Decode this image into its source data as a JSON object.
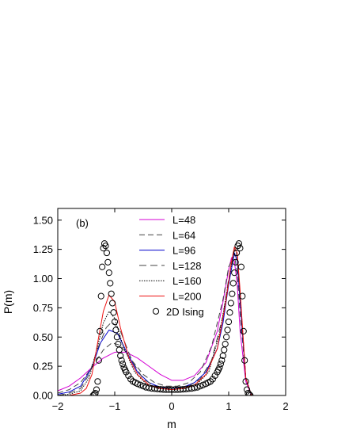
{
  "chart_data": {
    "type": "line",
    "panel_label": "(b)",
    "xlabel": "m",
    "ylabel": "P(m)",
    "xlim": [
      -2,
      2
    ],
    "ylim": [
      0,
      1.6
    ],
    "xticks": [
      {
        "value": -2,
        "label": "−2"
      },
      {
        "value": -1,
        "label": "−1"
      },
      {
        "value": 0,
        "label": "0"
      },
      {
        "value": 1,
        "label": "1"
      },
      {
        "value": 2,
        "label": "2"
      }
    ],
    "yticks": [
      {
        "value": 0,
        "label": "0.00"
      },
      {
        "value": 0.25,
        "label": "0.25"
      },
      {
        "value": 0.5,
        "label": "0.50"
      },
      {
        "value": 0.75,
        "label": "0.75"
      },
      {
        "value": 1.0,
        "label": "1.00"
      },
      {
        "value": 1.25,
        "label": "1.25"
      },
      {
        "value": 1.5,
        "label": "1.50"
      }
    ],
    "grid": false,
    "legend_position": "top-center",
    "series": [
      {
        "name": "L=48",
        "color": "#d400d4",
        "dash": "solid",
        "x": [
          -2.0,
          -1.8,
          -1.6,
          -1.4,
          -1.2,
          -1.0,
          -0.8,
          -0.6,
          -0.4,
          -0.2,
          0.0,
          0.2,
          0.4,
          0.6,
          0.8,
          0.9,
          1.0,
          1.05,
          1.1,
          1.15,
          1.2,
          1.3,
          1.4
        ],
        "y": [
          0.04,
          0.08,
          0.15,
          0.24,
          0.32,
          0.37,
          0.37,
          0.32,
          0.25,
          0.18,
          0.13,
          0.13,
          0.17,
          0.28,
          0.55,
          0.8,
          1.08,
          1.18,
          1.15,
          0.95,
          0.55,
          0.12,
          0.0
        ]
      },
      {
        "name": "L=64",
        "color": "#444444",
        "dash": "7,4",
        "x": [
          -2.0,
          -1.8,
          -1.6,
          -1.4,
          -1.2,
          -1.05,
          -0.9,
          -0.7,
          -0.5,
          -0.3,
          -0.1,
          0.1,
          0.3,
          0.5,
          0.7,
          0.9,
          1.0,
          1.1,
          1.15,
          1.2,
          1.3,
          1.4
        ],
        "y": [
          0.02,
          0.05,
          0.11,
          0.24,
          0.39,
          0.45,
          0.43,
          0.3,
          0.18,
          0.11,
          0.08,
          0.08,
          0.11,
          0.2,
          0.42,
          0.82,
          1.1,
          1.2,
          1.05,
          0.7,
          0.15,
          0.0
        ]
      },
      {
        "name": "L=96",
        "color": "#0000cc",
        "dash": "solid",
        "x": [
          -2.0,
          -1.8,
          -1.6,
          -1.4,
          -1.25,
          -1.1,
          -0.95,
          -0.8,
          -0.6,
          -0.4,
          -0.2,
          0.0,
          0.2,
          0.4,
          0.6,
          0.8,
          0.9,
          1.0,
          1.1,
          1.15,
          1.2,
          1.3,
          1.4
        ],
        "y": [
          0.01,
          0.03,
          0.08,
          0.24,
          0.45,
          0.56,
          0.53,
          0.38,
          0.2,
          0.11,
          0.07,
          0.06,
          0.07,
          0.11,
          0.2,
          0.4,
          0.62,
          0.95,
          1.22,
          1.15,
          0.8,
          0.15,
          0.0
        ]
      },
      {
        "name": "L=128",
        "color": "#444444",
        "dash": "9,5",
        "x": [
          -2.0,
          -1.8,
          -1.6,
          -1.45,
          -1.3,
          -1.15,
          -1.05,
          -0.9,
          -0.7,
          -0.5,
          -0.3,
          -0.1,
          0.1,
          0.3,
          0.5,
          0.7,
          0.9,
          1.0,
          1.1,
          1.15,
          1.2,
          1.3,
          1.4
        ],
        "y": [
          0.0,
          0.02,
          0.06,
          0.18,
          0.4,
          0.58,
          0.63,
          0.55,
          0.3,
          0.14,
          0.08,
          0.06,
          0.06,
          0.08,
          0.14,
          0.3,
          0.68,
          1.0,
          1.25,
          1.18,
          0.85,
          0.15,
          0.0
        ]
      },
      {
        "name": "L=160",
        "color": "#000000",
        "dash": "1.5,1.5",
        "x": [
          -2.0,
          -1.8,
          -1.6,
          -1.45,
          -1.3,
          -1.2,
          -1.1,
          -1.0,
          -0.85,
          -0.65,
          -0.45,
          -0.25,
          0.0,
          0.25,
          0.45,
          0.65,
          0.85,
          1.0,
          1.1,
          1.15,
          1.2,
          1.3,
          1.4
        ],
        "y": [
          0.0,
          0.01,
          0.04,
          0.15,
          0.42,
          0.62,
          0.72,
          0.66,
          0.42,
          0.2,
          0.1,
          0.06,
          0.05,
          0.06,
          0.1,
          0.2,
          0.55,
          0.98,
          1.27,
          1.2,
          0.88,
          0.15,
          0.0
        ]
      },
      {
        "name": "L=200",
        "color": "#ee1111",
        "dash": "solid",
        "x": [
          -2.0,
          -1.8,
          -1.6,
          -1.5,
          -1.4,
          -1.3,
          -1.2,
          -1.1,
          -1.0,
          -0.9,
          -0.75,
          -0.6,
          -0.4,
          -0.2,
          0.0,
          0.2,
          0.4,
          0.6,
          0.8,
          0.95,
          1.05,
          1.1,
          1.15,
          1.2,
          1.3,
          1.4
        ],
        "y": [
          0.0,
          0.0,
          0.02,
          0.06,
          0.18,
          0.45,
          0.72,
          0.86,
          0.8,
          0.58,
          0.32,
          0.18,
          0.09,
          0.06,
          0.05,
          0.06,
          0.09,
          0.18,
          0.4,
          0.8,
          1.15,
          1.27,
          1.22,
          0.9,
          0.15,
          0.0
        ]
      }
    ],
    "points": {
      "name": "2D Ising",
      "marker": "open-circle",
      "color": "#000000",
      "x": [
        -1.38,
        -1.36,
        -1.34,
        -1.32,
        -1.3,
        -1.28,
        -1.26,
        -1.24,
        -1.22,
        -1.2,
        -1.18,
        -1.16,
        -1.14,
        -1.12,
        -1.1,
        -1.08,
        -1.06,
        -1.04,
        -1.02,
        -1.0,
        -0.98,
        -0.96,
        -0.94,
        -0.92,
        -0.9,
        -0.88,
        -0.86,
        -0.84,
        -0.82,
        -0.8,
        -0.76,
        -0.72,
        -0.68,
        -0.64,
        -0.6,
        -0.55,
        -0.5,
        -0.45,
        -0.4,
        -0.35,
        -0.3,
        -0.25,
        -0.2,
        -0.15,
        -0.1,
        -0.05,
        0.0,
        0.05,
        0.1,
        0.15,
        0.2,
        0.25,
        0.3,
        0.35,
        0.4,
        0.45,
        0.5,
        0.55,
        0.6,
        0.64,
        0.68,
        0.72,
        0.76,
        0.8,
        0.82,
        0.84,
        0.86,
        0.88,
        0.9,
        0.92,
        0.94,
        0.96,
        0.98,
        1.0,
        1.02,
        1.04,
        1.06,
        1.08,
        1.1,
        1.12,
        1.14,
        1.16,
        1.18,
        1.2,
        1.22,
        1.24,
        1.26,
        1.28,
        1.3,
        1.32,
        1.34,
        1.36,
        1.38
      ],
      "y": [
        0.0,
        0.01,
        0.02,
        0.05,
        0.12,
        0.3,
        0.55,
        0.85,
        1.1,
        1.26,
        1.3,
        1.28,
        1.22,
        1.14,
        1.05,
        0.96,
        0.87,
        0.79,
        0.71,
        0.63,
        0.56,
        0.5,
        0.44,
        0.39,
        0.34,
        0.3,
        0.27,
        0.24,
        0.22,
        0.2,
        0.17,
        0.14,
        0.12,
        0.11,
        0.1,
        0.09,
        0.08,
        0.07,
        0.065,
        0.06,
        0.058,
        0.055,
        0.053,
        0.051,
        0.05,
        0.05,
        0.05,
        0.05,
        0.05,
        0.051,
        0.053,
        0.055,
        0.058,
        0.06,
        0.065,
        0.07,
        0.08,
        0.09,
        0.1,
        0.11,
        0.12,
        0.14,
        0.17,
        0.2,
        0.22,
        0.24,
        0.27,
        0.3,
        0.34,
        0.39,
        0.44,
        0.5,
        0.56,
        0.63,
        0.71,
        0.79,
        0.87,
        0.96,
        1.05,
        1.14,
        1.22,
        1.28,
        1.3,
        1.26,
        1.1,
        0.85,
        0.55,
        0.3,
        0.12,
        0.05,
        0.02,
        0.01,
        0.0
      ]
    }
  }
}
